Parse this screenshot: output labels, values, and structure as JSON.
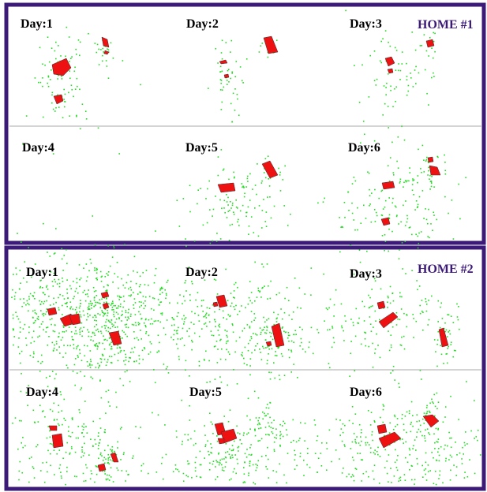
{
  "homes": [
    {
      "label": "HOME #1",
      "days": [
        {
          "label": "Day:1",
          "density": "low"
        },
        {
          "label": "Day:2",
          "density": "low"
        },
        {
          "label": "Day:3",
          "density": "low"
        },
        {
          "label": "Day:4",
          "density": "none"
        },
        {
          "label": "Day:5",
          "density": "low"
        },
        {
          "label": "Day:6",
          "density": "medium"
        }
      ]
    },
    {
      "label": "HOME #2",
      "days": [
        {
          "label": "Day:1",
          "density": "high"
        },
        {
          "label": "Day:2",
          "density": "medium"
        },
        {
          "label": "Day:3",
          "density": "low"
        },
        {
          "label": "Day:4",
          "density": "low"
        },
        {
          "label": "Day:5",
          "density": "medium"
        },
        {
          "label": "Day:6",
          "density": "medium"
        }
      ]
    }
  ],
  "colors": {
    "frame": "#3b1a78",
    "divider": "#aaaaaa",
    "points": "#22dd22",
    "clusters": "#ee1111",
    "title": "#3b1a78",
    "label": "#000000"
  }
}
